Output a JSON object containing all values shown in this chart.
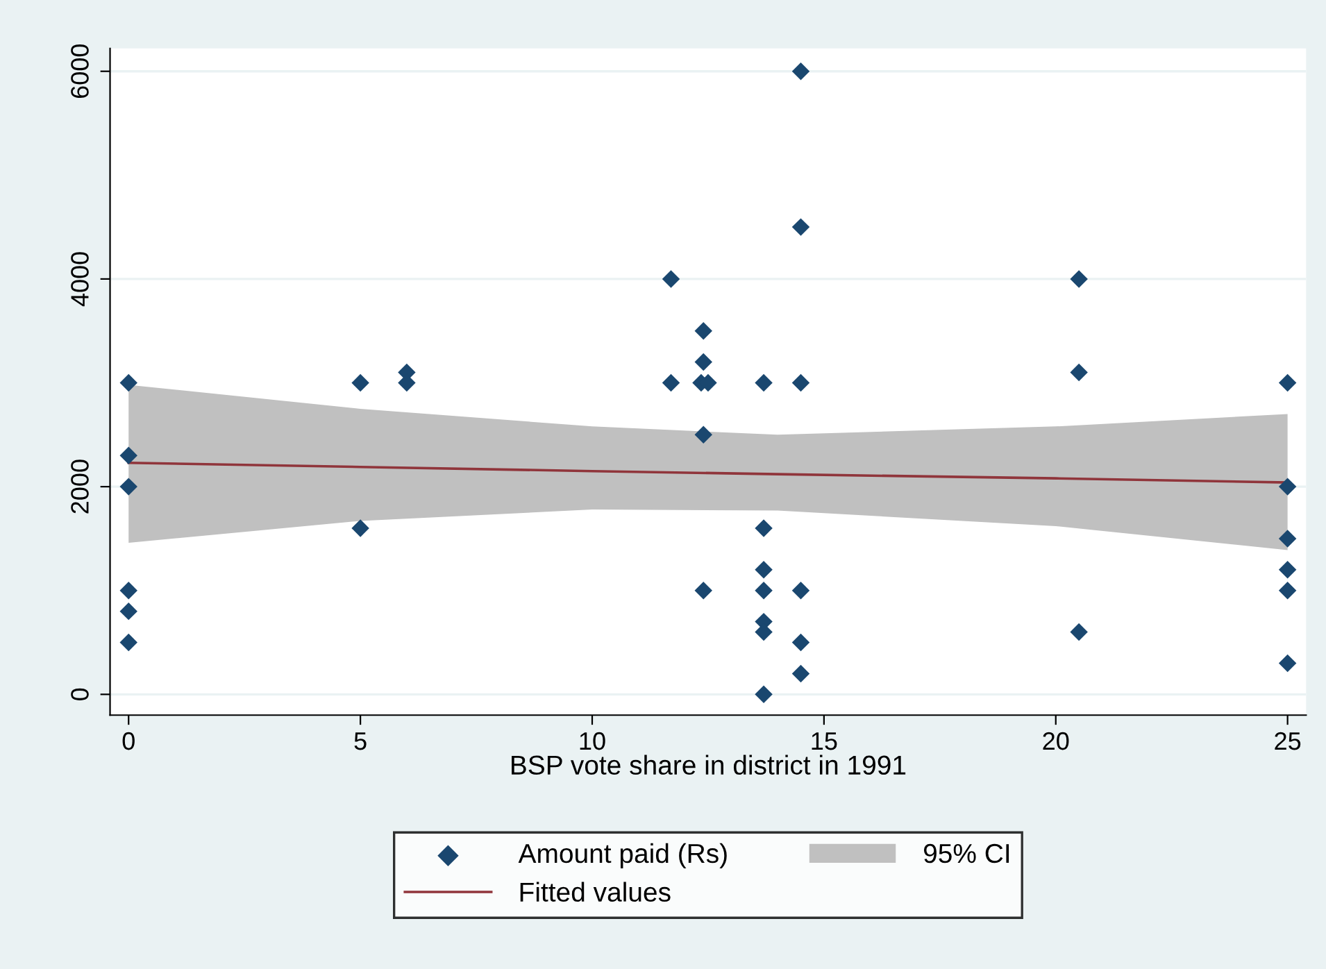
{
  "chart_data": {
    "type": "scatter",
    "xlabel": "BSP vote share in district in 1991",
    "xlim": [
      -0.4,
      25.4
    ],
    "xticks": [
      0,
      5,
      10,
      15,
      20,
      25
    ],
    "ylim": [
      -200,
      6220
    ],
    "yticks": [
      0,
      2000,
      4000,
      6000
    ],
    "grid": "y",
    "legend": "bottom",
    "series": [
      {
        "name": "Amount paid (Rs)",
        "color": "#1a476f",
        "marker": "diamond",
        "x": [
          0,
          0,
          0,
          0,
          0,
          0,
          5,
          5,
          6,
          6,
          11.7,
          11.7,
          12.4,
          12.4,
          12.35,
          12.5,
          12.4,
          12.4,
          13.7,
          13.7,
          13.7,
          13.7,
          13.7,
          13.7,
          13.7,
          14.5,
          14.5,
          14.5,
          14.5,
          14.5,
          14.5,
          20.5,
          20.5,
          20.5,
          25,
          25,
          25,
          25,
          25,
          25
        ],
        "values": [
          3000,
          2300,
          2000,
          1000,
          800,
          500,
          3000,
          1600,
          3100,
          3000,
          4000,
          3000,
          3500,
          3200,
          3000,
          3000,
          2500,
          1000,
          3000,
          1600,
          1200,
          1000,
          700,
          600,
          0,
          6000,
          4500,
          3000,
          1000,
          500,
          200,
          4000,
          3100,
          600,
          3000,
          2000,
          1500,
          1200,
          1000,
          300
        ]
      },
      {
        "name": "Fitted values",
        "type": "line",
        "color": "#90353b",
        "line_style": "solid",
        "x": [
          0,
          5,
          10,
          14,
          20,
          25
        ],
        "values": [
          2230,
          2190,
          2150,
          2120,
          2080,
          2040
        ],
        "lower": [
          1460,
          1670,
          1780,
          1770,
          1620,
          1390
        ],
        "upper": [
          2980,
          2750,
          2580,
          2500,
          2580,
          2700
        ]
      }
    ],
    "annotations": [
      "95% CI"
    ]
  }
}
